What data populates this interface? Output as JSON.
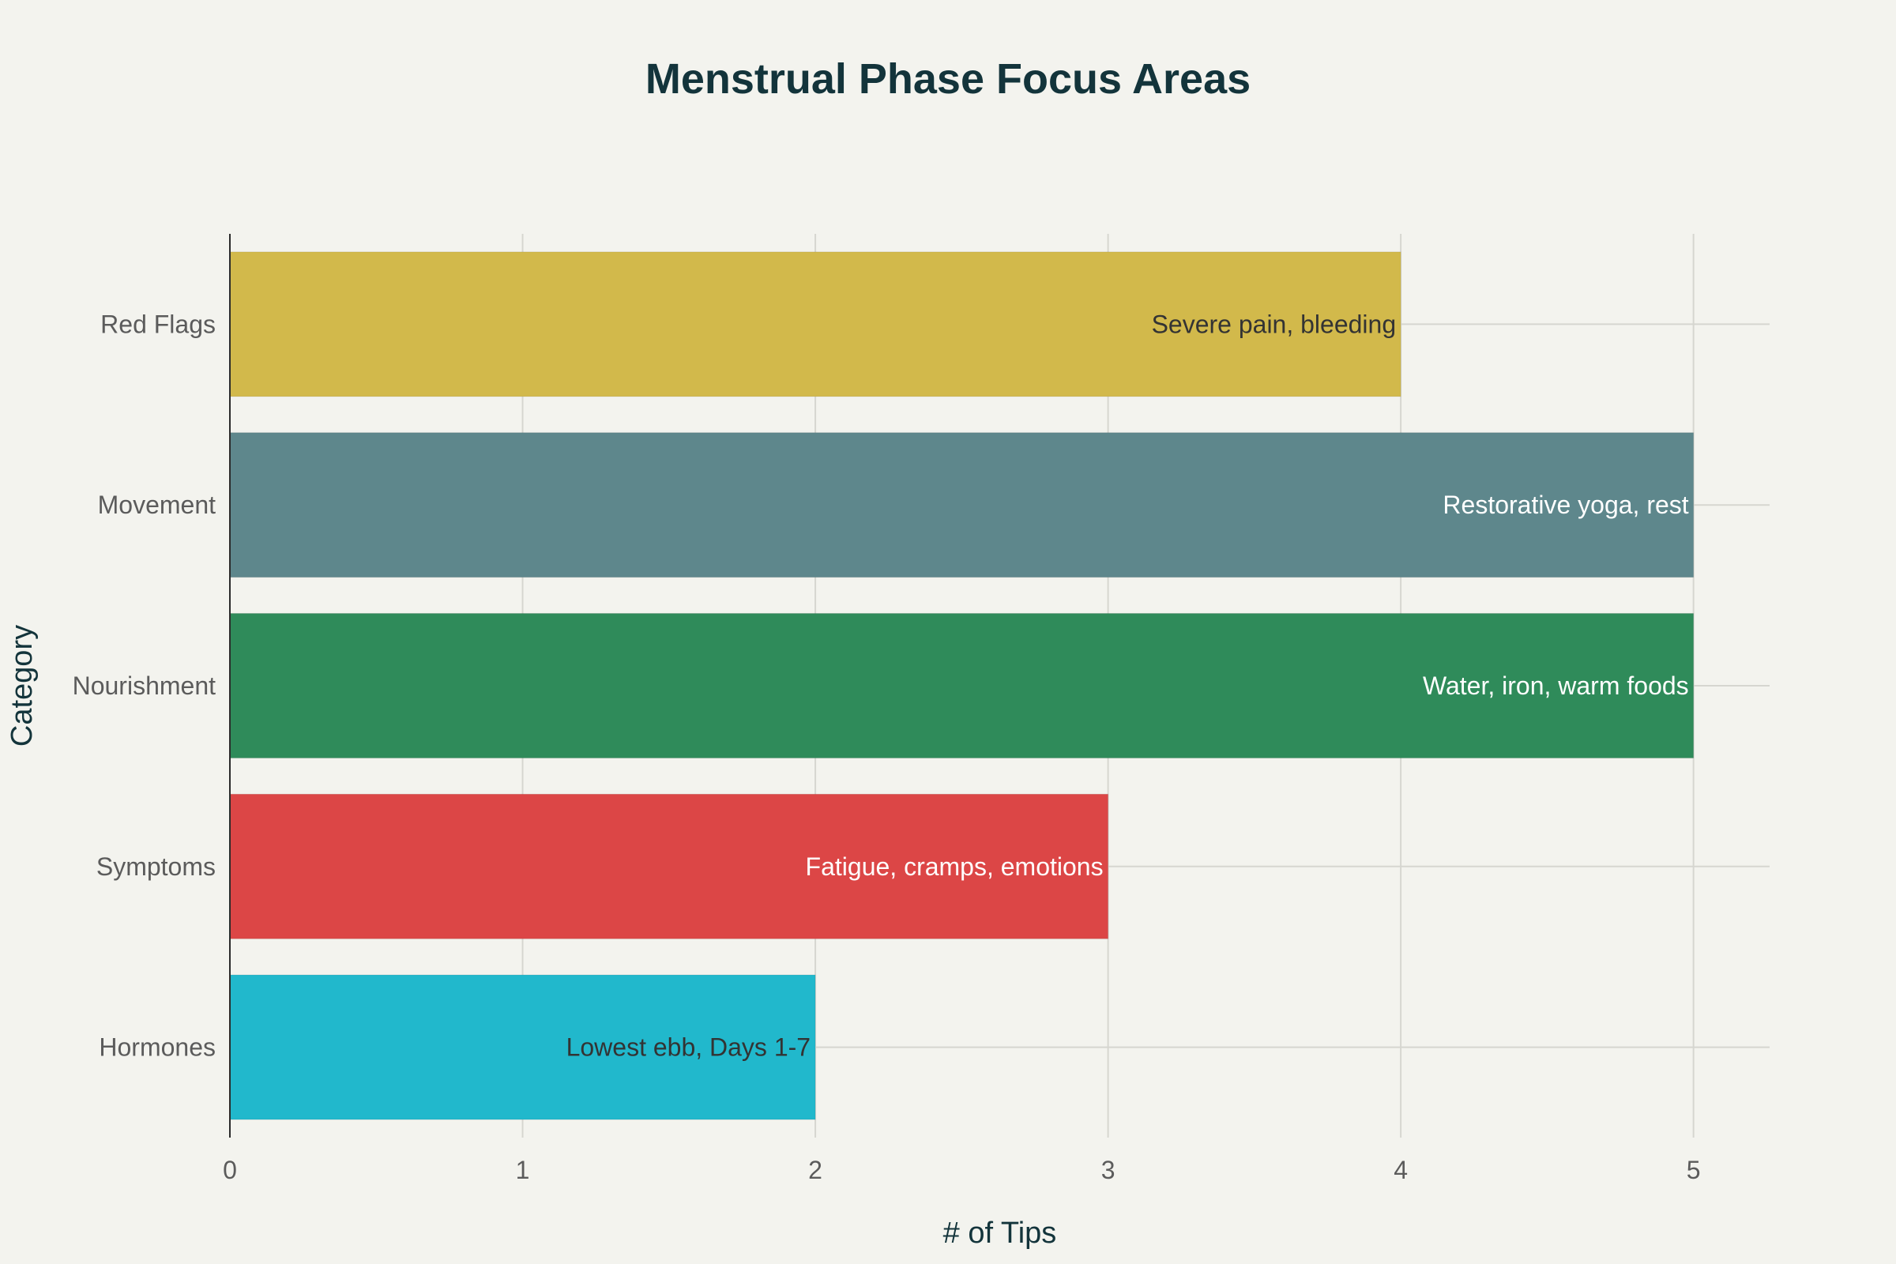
{
  "chart_data": {
    "type": "bar",
    "orientation": "horizontal",
    "title": "Menstrual Phase Focus Areas",
    "xlabel": "# of Tips",
    "ylabel": "Category",
    "xlim": [
      0,
      5.26
    ],
    "xticks": [
      0,
      1,
      2,
      3,
      4,
      5
    ],
    "grid": true,
    "categories": [
      "Hormones",
      "Symptoms",
      "Nourishment",
      "Movement",
      "Red Flags"
    ],
    "values": [
      2,
      3,
      5,
      5,
      4
    ],
    "labels": [
      "Lowest ebb, Days 1-7",
      "Fatigue, cramps, emotions",
      "Water, iron, warm foods",
      "Restorative yoga, rest",
      "Severe pain, bleeding"
    ],
    "colors": [
      "#21b8cc",
      "#dc4646",
      "#2f8b5a",
      "#5e878c",
      "#d2b94b"
    ],
    "label_colors": [
      "#333333",
      "#ffffff",
      "#ffffff",
      "#ffffff",
      "#333333"
    ]
  }
}
